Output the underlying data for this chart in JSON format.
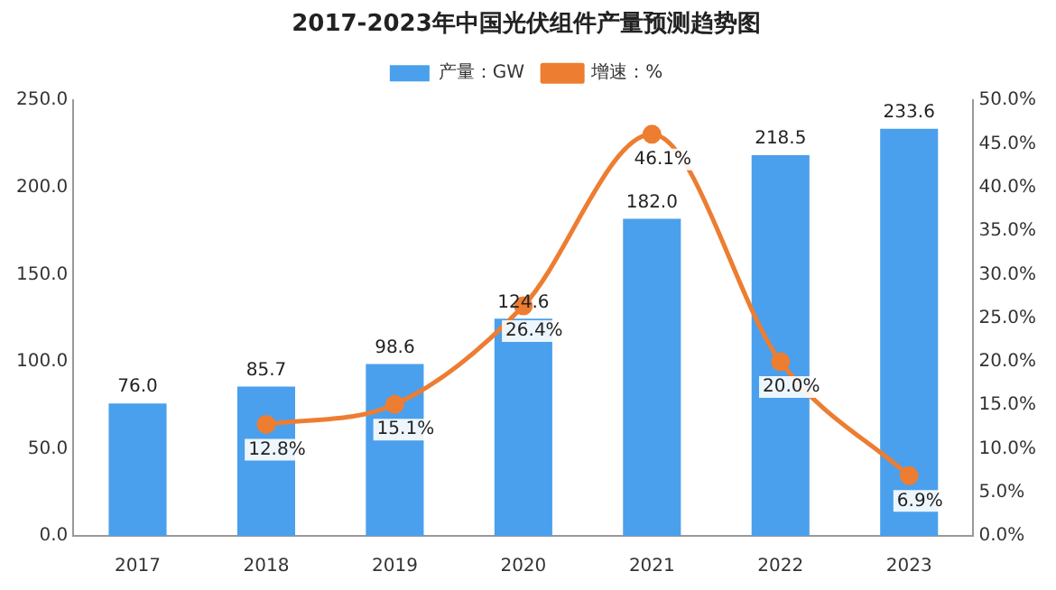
{
  "chart_data": {
    "type": "bar",
    "title": "2017-2023年中国光伏组件产量预测趋势图",
    "categories": [
      "2017",
      "2018",
      "2019",
      "2020",
      "2021",
      "2022",
      "2023"
    ],
    "series": [
      {
        "name": "产量：GW",
        "color": "#4aa0ec",
        "values": [
          76.0,
          85.7,
          98.6,
          124.6,
          182.0,
          218.5,
          233.6
        ],
        "value_labels": [
          "76.0",
          "85.7",
          "98.6",
          "124.6",
          "182.0",
          "218.5",
          "233.6"
        ]
      },
      {
        "name": "增速：%",
        "type": "line",
        "axis": "y2",
        "color": "#ed7d31",
        "marker": "circle",
        "line_style": "solid",
        "values": [
          null,
          12.8,
          15.1,
          26.4,
          46.1,
          20.0,
          6.9
        ],
        "value_labels": [
          null,
          "12.8%",
          "15.1%",
          "26.4%",
          "46.1%",
          "20.0%",
          "6.9%"
        ]
      }
    ],
    "ylim": [
      0,
      250
    ],
    "yticks": [
      {
        "value": 0,
        "label": "0.0"
      },
      {
        "value": 50,
        "label": "50.0"
      },
      {
        "value": 100,
        "label": "100.0"
      },
      {
        "value": 150,
        "label": "150.0"
      },
      {
        "value": 200,
        "label": "200.0"
      },
      {
        "value": 250,
        "label": "250.0"
      }
    ],
    "y2lim": [
      0,
      50
    ],
    "y2ticks": [
      {
        "value": 0,
        "label": "0.0%"
      },
      {
        "value": 5,
        "label": "5.0%"
      },
      {
        "value": 10,
        "label": "10.0%"
      },
      {
        "value": 15,
        "label": "15.0%"
      },
      {
        "value": 20,
        "label": "20.0%"
      },
      {
        "value": 25,
        "label": "25.0%"
      },
      {
        "value": 30,
        "label": "30.0%"
      },
      {
        "value": 35,
        "label": "35.0%"
      },
      {
        "value": 40,
        "label": "40.0%"
      },
      {
        "value": 45,
        "label": "45.0%"
      },
      {
        "value": 50,
        "label": "50.0%"
      }
    ],
    "grid": false,
    "legend": "top"
  }
}
